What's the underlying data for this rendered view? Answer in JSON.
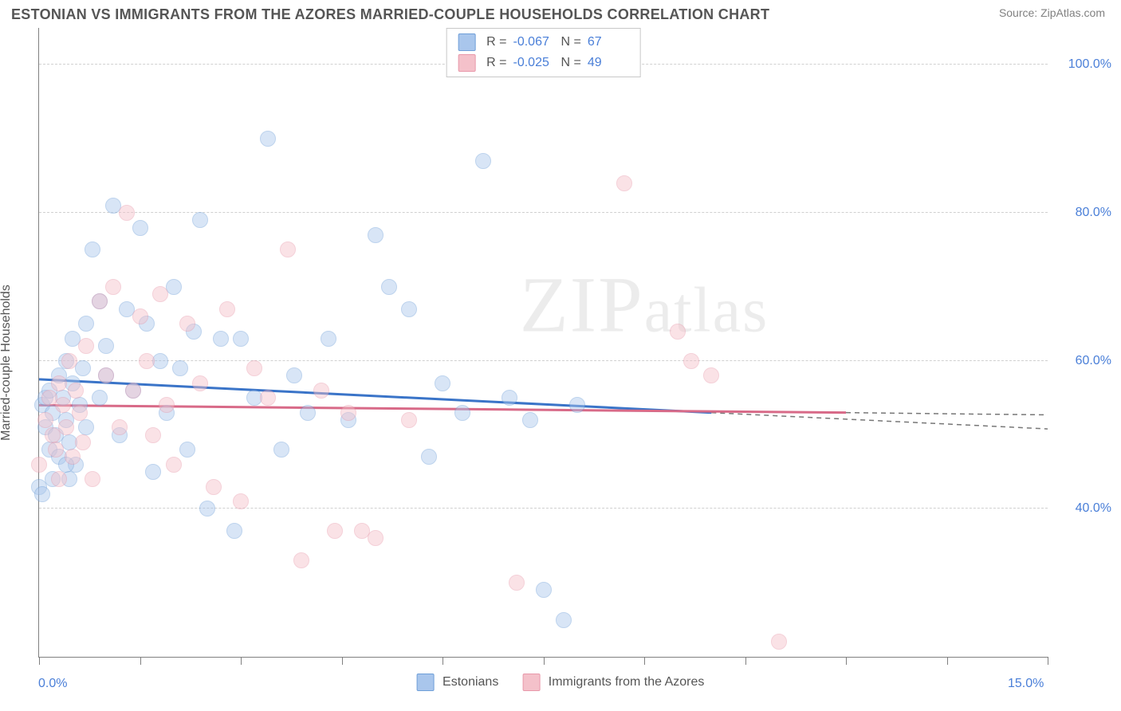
{
  "header": {
    "title": "ESTONIAN VS IMMIGRANTS FROM THE AZORES MARRIED-COUPLE HOUSEHOLDS CORRELATION CHART",
    "source": "Source: ZipAtlas.com"
  },
  "ylabel": "Married-couple Households",
  "watermark": "ZIPatlas",
  "chart": {
    "type": "scatter",
    "xlim": [
      0,
      15
    ],
    "ylim": [
      20,
      105
    ],
    "x_min_label": "0.0%",
    "x_max_label": "15.0%",
    "x_ticks": [
      0,
      1.5,
      3.0,
      4.5,
      6.0,
      7.5,
      9.0,
      10.5,
      12.0,
      13.5,
      15.0
    ],
    "y_gridlines": [
      40,
      60,
      80,
      100
    ],
    "y_tick_labels": [
      "40.0%",
      "60.0%",
      "80.0%",
      "100.0%"
    ],
    "background_color": "#ffffff",
    "grid_color": "#d0d0d0",
    "axis_color": "#808080",
    "marker_radius": 9,
    "marker_opacity": 0.45
  },
  "series": [
    {
      "name": "Estonians",
      "color_fill": "#a9c6ec",
      "color_stroke": "#6f9fd8",
      "R": "-0.067",
      "N": "67",
      "trend": {
        "y_at_x0": 57.5,
        "y_at_x10": 53.0,
        "x_solid_end": 10.0,
        "y_at_x15": 50.8
      },
      "points": [
        [
          0.05,
          54
        ],
        [
          0.1,
          51
        ],
        [
          0.1,
          55
        ],
        [
          0.15,
          48
        ],
        [
          0.15,
          56
        ],
        [
          0.2,
          44
        ],
        [
          0.2,
          53
        ],
        [
          0.25,
          50
        ],
        [
          0.3,
          58
        ],
        [
          0.3,
          47
        ],
        [
          0.35,
          55
        ],
        [
          0.4,
          52
        ],
        [
          0.4,
          60
        ],
        [
          0.45,
          49
        ],
        [
          0.5,
          57
        ],
        [
          0.5,
          63
        ],
        [
          0.55,
          46
        ],
        [
          0.6,
          54
        ],
        [
          0.65,
          59
        ],
        [
          0.7,
          51
        ],
        [
          0.7,
          65
        ],
        [
          0.8,
          75
        ],
        [
          0.9,
          55
        ],
        [
          0.9,
          68
        ],
        [
          1.0,
          58
        ],
        [
          1.0,
          62
        ],
        [
          1.1,
          81
        ],
        [
          1.2,
          50
        ],
        [
          1.3,
          67
        ],
        [
          1.4,
          56
        ],
        [
          1.5,
          78
        ],
        [
          1.6,
          65
        ],
        [
          1.7,
          45
        ],
        [
          1.8,
          60
        ],
        [
          1.9,
          53
        ],
        [
          2.0,
          70
        ],
        [
          2.1,
          59
        ],
        [
          2.2,
          48
        ],
        [
          2.3,
          64
        ],
        [
          2.4,
          79
        ],
        [
          2.5,
          40
        ],
        [
          2.7,
          63
        ],
        [
          2.9,
          37
        ],
        [
          3.0,
          63
        ],
        [
          3.2,
          55
        ],
        [
          3.4,
          90
        ],
        [
          3.6,
          48
        ],
        [
          3.8,
          58
        ],
        [
          4.0,
          53
        ],
        [
          4.3,
          63
        ],
        [
          4.6,
          52
        ],
        [
          5.0,
          77
        ],
        [
          5.2,
          70
        ],
        [
          5.5,
          67
        ],
        [
          5.8,
          47
        ],
        [
          6.0,
          57
        ],
        [
          6.3,
          53
        ],
        [
          6.6,
          87
        ],
        [
          7.0,
          55
        ],
        [
          7.3,
          52
        ],
        [
          7.5,
          29
        ],
        [
          7.8,
          25
        ],
        [
          8.0,
          54
        ],
        [
          0.0,
          43
        ],
        [
          0.05,
          42
        ],
        [
          0.4,
          46
        ],
        [
          0.45,
          44
        ]
      ]
    },
    {
      "name": "Immigrants from the Azores",
      "color_fill": "#f4c1ca",
      "color_stroke": "#e898aa",
      "R": "-0.025",
      "N": "49",
      "trend": {
        "y_at_x0": 54.0,
        "y_at_x12": 53.0,
        "x_solid_end": 12.0,
        "y_at_x15": 52.7
      },
      "points": [
        [
          0.1,
          52
        ],
        [
          0.15,
          55
        ],
        [
          0.2,
          50
        ],
        [
          0.25,
          48
        ],
        [
          0.3,
          57
        ],
        [
          0.35,
          54
        ],
        [
          0.4,
          51
        ],
        [
          0.45,
          60
        ],
        [
          0.5,
          47
        ],
        [
          0.55,
          56
        ],
        [
          0.6,
          53
        ],
        [
          0.65,
          49
        ],
        [
          0.7,
          62
        ],
        [
          0.8,
          44
        ],
        [
          0.9,
          68
        ],
        [
          1.0,
          58
        ],
        [
          1.1,
          70
        ],
        [
          1.2,
          51
        ],
        [
          1.3,
          80
        ],
        [
          1.4,
          56
        ],
        [
          1.5,
          66
        ],
        [
          1.6,
          60
        ],
        [
          1.7,
          50
        ],
        [
          1.8,
          69
        ],
        [
          1.9,
          54
        ],
        [
          2.0,
          46
        ],
        [
          2.2,
          65
        ],
        [
          2.4,
          57
        ],
        [
          2.6,
          43
        ],
        [
          2.8,
          67
        ],
        [
          3.0,
          41
        ],
        [
          3.2,
          59
        ],
        [
          3.4,
          55
        ],
        [
          3.7,
          75
        ],
        [
          3.9,
          33
        ],
        [
          4.2,
          56
        ],
        [
          4.4,
          37
        ],
        [
          4.6,
          53
        ],
        [
          4.8,
          37
        ],
        [
          5.0,
          36
        ],
        [
          5.5,
          52
        ],
        [
          7.1,
          30
        ],
        [
          8.7,
          84
        ],
        [
          9.5,
          64
        ],
        [
          9.7,
          60
        ],
        [
          10.0,
          58
        ],
        [
          11.0,
          22
        ],
        [
          0.0,
          46
        ],
        [
          0.3,
          44
        ]
      ]
    }
  ],
  "bottom_legend": {
    "series1_label": "Estonians",
    "series2_label": "Immigrants from the Azores"
  },
  "top_legend_labels": {
    "R": "R =",
    "N": "N ="
  }
}
